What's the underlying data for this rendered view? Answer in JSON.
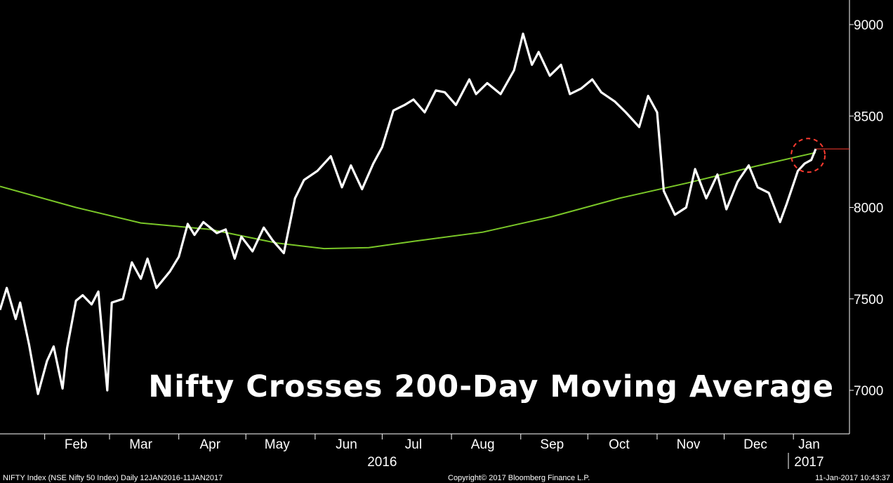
{
  "chart_data": {
    "type": "line",
    "title": "Nifty Crosses 200-Day Moving Average",
    "ylim": [
      6800,
      9100
    ],
    "y_ticks": [
      "9000",
      "8500",
      "8000",
      "7500",
      "7000"
    ],
    "y_tick_values": [
      9000,
      8500,
      8000,
      7500,
      7000
    ],
    "x_range": [
      "2016-01-12",
      "2017-01-11"
    ],
    "months": [
      "Feb",
      "Mar",
      "Apr",
      "May",
      "Jun",
      "Jul",
      "Aug",
      "Sep",
      "Oct",
      "Nov",
      "Dec",
      "Jan"
    ],
    "month_dates": [
      "2016-02-15",
      "2016-03-15",
      "2016-04-15",
      "2016-05-15",
      "2016-06-15",
      "2016-07-15",
      "2016-08-15",
      "2016-09-15",
      "2016-10-15",
      "2016-11-15",
      "2016-12-15",
      "2017-01-08"
    ],
    "years": [
      "2016",
      "2017"
    ],
    "year_dates": [
      "2016-07-01",
      "2017-01-08"
    ],
    "grid": false,
    "legend": "none",
    "colors": {
      "background": "#000000",
      "price": "#ffffff",
      "moving_average": "#7ac728",
      "last_price_line": "#ff3b30",
      "highlight_circle": "#ff3b30"
    },
    "series": [
      {
        "x": [
          "2016-01-12",
          "2016-01-15",
          "2016-01-19",
          "2016-01-21",
          "2016-01-25",
          "2016-01-29",
          "2016-02-02",
          "2016-02-05",
          "2016-02-09",
          "2016-02-11",
          "2016-02-15",
          "2016-02-18",
          "2016-02-22",
          "2016-02-25",
          "2016-02-29",
          "2016-03-02",
          "2016-03-07",
          "2016-03-11",
          "2016-03-15",
          "2016-03-18",
          "2016-03-22",
          "2016-03-28",
          "2016-04-01",
          "2016-04-05",
          "2016-04-08",
          "2016-04-12",
          "2016-04-18",
          "2016-04-22",
          "2016-04-26",
          "2016-04-29",
          "2016-05-04",
          "2016-05-09",
          "2016-05-13",
          "2016-05-18",
          "2016-05-23",
          "2016-05-27",
          "2016-06-02",
          "2016-06-08",
          "2016-06-13",
          "2016-06-17",
          "2016-06-22",
          "2016-06-27",
          "2016-07-01",
          "2016-07-06",
          "2016-07-11",
          "2016-07-15",
          "2016-07-20",
          "2016-07-25",
          "2016-07-29",
          "2016-08-03",
          "2016-08-09",
          "2016-08-12",
          "2016-08-17",
          "2016-08-23",
          "2016-08-29",
          "2016-09-02",
          "2016-09-06",
          "2016-09-09",
          "2016-09-14",
          "2016-09-19",
          "2016-09-23",
          "2016-09-28",
          "2016-10-03",
          "2016-10-07",
          "2016-10-13",
          "2016-10-18",
          "2016-10-24",
          "2016-10-28",
          "2016-11-01",
          "2016-11-04",
          "2016-11-09",
          "2016-11-14",
          "2016-11-18",
          "2016-11-23",
          "2016-11-28",
          "2016-12-02",
          "2016-12-07",
          "2016-12-12",
          "2016-12-16",
          "2016-12-21",
          "2016-12-26",
          "2016-12-29",
          "2017-01-03",
          "2017-01-06",
          "2017-01-09",
          "2017-01-11"
        ],
        "values": [
          7440,
          7560,
          7390,
          7480,
          7250,
          6980,
          7160,
          7240,
          7010,
          7230,
          7490,
          7520,
          7470,
          7540,
          7000,
          7480,
          7500,
          7700,
          7610,
          7720,
          7560,
          7650,
          7730,
          7910,
          7850,
          7920,
          7860,
          7880,
          7720,
          7840,
          7760,
          7890,
          7820,
          7750,
          8050,
          8150,
          8200,
          8280,
          8110,
          8230,
          8100,
          8240,
          8330,
          8530,
          8560,
          8590,
          8520,
          8640,
          8630,
          8560,
          8700,
          8620,
          8680,
          8620,
          8750,
          8950,
          8780,
          8850,
          8720,
          8780,
          8620,
          8650,
          8700,
          8630,
          8580,
          8520,
          8440,
          8610,
          8520,
          8090,
          7960,
          8000,
          8210,
          8050,
          8180,
          7990,
          8140,
          8230,
          8110,
          8080,
          7920,
          8020,
          8200,
          8240,
          8260,
          8320
        ]
      },
      {
        "x": [
          "2016-01-12",
          "2016-02-15",
          "2016-03-15",
          "2016-04-15",
          "2016-05-15",
          "2016-06-05",
          "2016-06-25",
          "2016-07-15",
          "2016-08-15",
          "2016-09-15",
          "2016-10-15",
          "2016-11-15",
          "2016-12-15",
          "2017-01-11"
        ],
        "values": [
          8115,
          8000,
          7915,
          7880,
          7805,
          7775,
          7780,
          7815,
          7865,
          7950,
          8050,
          8135,
          8225,
          8300
        ]
      }
    ],
    "last_price": 8320,
    "crossing_date": "2017-01-06"
  },
  "footer": {
    "left": "NIFTY Index (NSE Nifty 50 Index)  Daily 12JAN2016-11JAN2017",
    "center": "Copyright© 2017 Bloomberg Finance L.P.",
    "right": "11-Jan-2017 10:43:37"
  }
}
